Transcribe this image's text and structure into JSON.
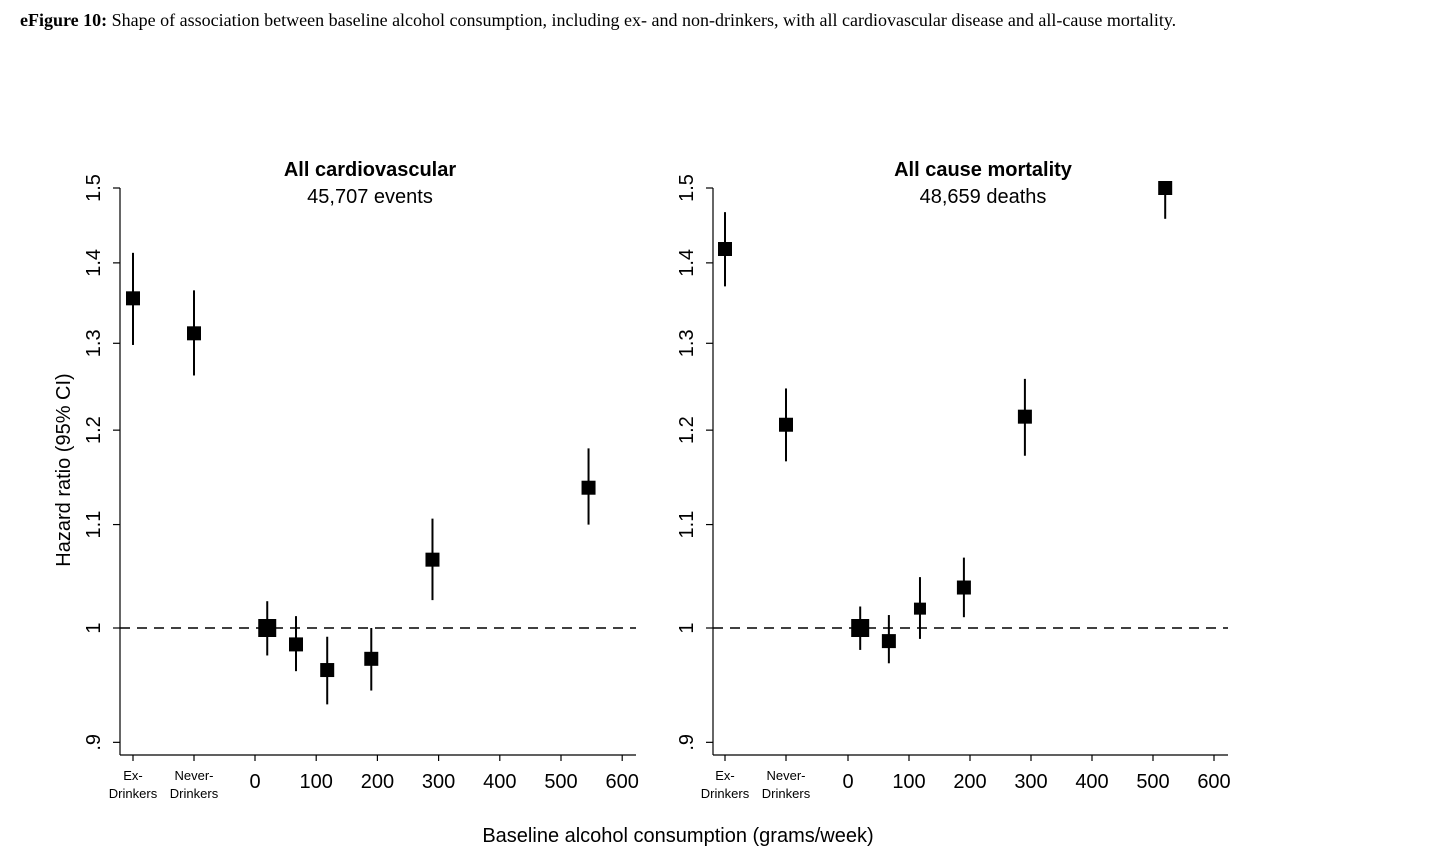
{
  "caption": {
    "label": "eFigure 10:",
    "text": " Shape of association between baseline alcohol consumption, including ex- and non-drinkers, with all cardiovascular disease and all-cause mortality."
  },
  "ylabel": "Hazard ratio (95% CI)",
  "xlabel": "Baseline alcohol consumption (grams/week)",
  "chart_data": [
    {
      "type": "scatter",
      "title": "All cardiovascular",
      "subtitle": "45,707 events",
      "ylabel": "Hazard ratio (95% CI)",
      "xlabel": "Baseline alcohol consumption (grams/week)",
      "yscale": "log",
      "ylim": [
        0.9,
        1.5
      ],
      "yticks": [
        0.9,
        1.0,
        1.1,
        1.2,
        1.3,
        1.4,
        1.5
      ],
      "ytick_labels": [
        ".9",
        "1",
        "1.1",
        "1.2",
        "1.3",
        "1.4",
        "1.5"
      ],
      "xticks": [
        0,
        100,
        200,
        300,
        400,
        500,
        600
      ],
      "xtick_labels": [
        "0",
        "100",
        "200",
        "300",
        "400",
        "500",
        "600"
      ],
      "xlim": [
        -200,
        620
      ],
      "category_labels": [
        [
          "Ex-",
          "Drinkers"
        ],
        [
          "Never-",
          "Drinkers"
        ]
      ],
      "reference_line": 1.0,
      "categorical_points": [
        {
          "label": "Ex-Drinkers",
          "hr": 1.355,
          "lo": 1.298,
          "hi": 1.413
        },
        {
          "label": "Never-Drinkers",
          "hr": 1.312,
          "lo": 1.262,
          "hi": 1.365
        }
      ],
      "points": [
        {
          "x": 20,
          "hr": 1.0,
          "lo": 0.975,
          "hi": 1.025,
          "size": "large"
        },
        {
          "x": 67,
          "hr": 0.985,
          "lo": 0.961,
          "hi": 1.011,
          "size": "medium"
        },
        {
          "x": 118,
          "hr": 0.962,
          "lo": 0.932,
          "hi": 0.992,
          "size": "medium"
        },
        {
          "x": 190,
          "hr": 0.972,
          "lo": 0.944,
          "hi": 1.0,
          "size": "medium"
        },
        {
          "x": 290,
          "hr": 1.065,
          "lo": 1.026,
          "hi": 1.106,
          "size": "medium"
        },
        {
          "x": 545,
          "hr": 1.138,
          "lo": 1.1,
          "hi": 1.18,
          "size": "medium"
        }
      ]
    },
    {
      "type": "scatter",
      "title": "All cause mortality",
      "subtitle": "48,659 deaths",
      "ylabel": "Hazard ratio (95% CI)",
      "xlabel": "Baseline alcohol consumption (grams/week)",
      "yscale": "log",
      "ylim": [
        0.9,
        1.5
      ],
      "yticks": [
        0.9,
        1.0,
        1.1,
        1.2,
        1.3,
        1.4,
        1.5
      ],
      "ytick_labels": [
        ".9",
        "1",
        "1.1",
        "1.2",
        "1.3",
        "1.4",
        "1.5"
      ],
      "xticks": [
        0,
        100,
        200,
        300,
        400,
        500,
        600
      ],
      "xtick_labels": [
        "0",
        "100",
        "200",
        "300",
        "400",
        "500",
        "600"
      ],
      "xlim": [
        -200,
        620
      ],
      "category_labels": [
        [
          "Ex-",
          "Drinkers"
        ],
        [
          "Never-",
          "Drinkers"
        ]
      ],
      "reference_line": 1.0,
      "categorical_points": [
        {
          "label": "Ex-Drinkers",
          "hr": 1.418,
          "lo": 1.37,
          "hi": 1.467
        },
        {
          "label": "Never-Drinkers",
          "hr": 1.206,
          "lo": 1.166,
          "hi": 1.247
        }
      ],
      "points": [
        {
          "x": 20,
          "hr": 1.0,
          "lo": 0.98,
          "hi": 1.02,
          "size": "large"
        },
        {
          "x": 67,
          "hr": 0.988,
          "lo": 0.968,
          "hi": 1.012,
          "size": "medium"
        },
        {
          "x": 118,
          "hr": 1.018,
          "lo": 0.99,
          "hi": 1.048,
          "size": "small"
        },
        {
          "x": 190,
          "hr": 1.038,
          "lo": 1.01,
          "hi": 1.067,
          "size": "medium"
        },
        {
          "x": 290,
          "hr": 1.215,
          "lo": 1.172,
          "hi": 1.258,
          "size": "medium"
        },
        {
          "x": 520,
          "hr": 1.5,
          "lo": 1.458,
          "hi": 1.5,
          "size": "medium"
        }
      ]
    }
  ]
}
